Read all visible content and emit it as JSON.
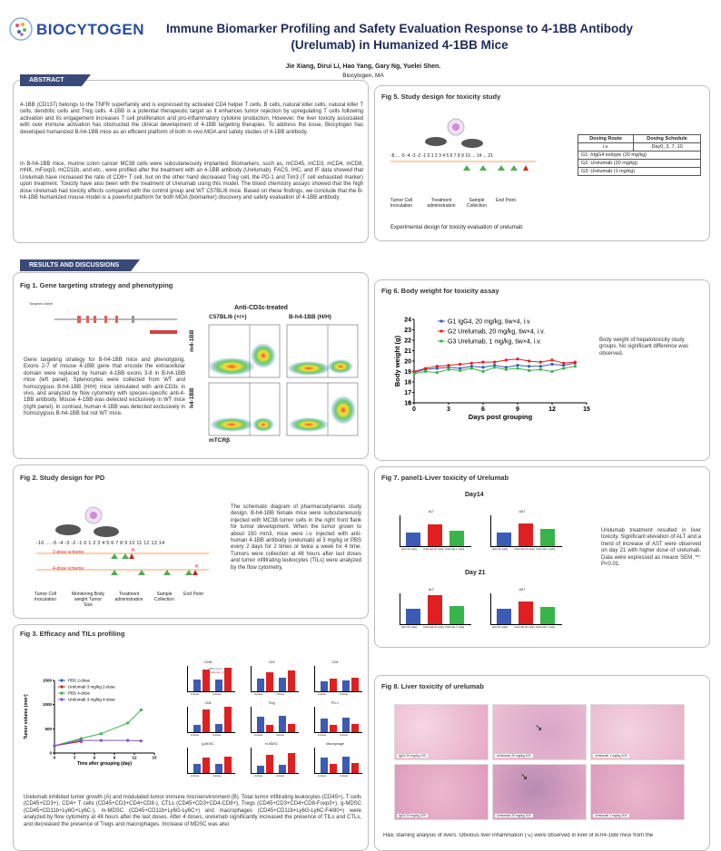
{
  "header": {
    "logo_text": "BIOCYTOGEN",
    "title_line1": "Immune Biomarker Profiling and Safety Evaluation Response to 4-1BB Antibody",
    "title_line2": "(Urelumab) in Humanized 4-1BB Mice",
    "authors": "Jie Xiang, Dirui Li, Hao Yang, Gary Ng, Yuelei Shen.",
    "affiliation": "Biocytogen, MA"
  },
  "abstract": {
    "heading": "ABSTRACT",
    "para1": "4-1BB (CD137) belongs to the TNFR superfamily and is expressed by activated CD4 helper T cells, B cells, natural killer cells, natural killer T cells, dendritic cells and Treg cells. 4-1BB is a potential therapeutic target as it enhances tumor rejection by upregulating T cells following activation and its engagement increases T cell proliferation and pro-inflammatory cytokine production. However, the liver toxicity associated with over immune activation has obstructed the clinical development of 4-1BB targeting therapies. To address the issue, Biocytogen has developed humanized B-h4-1BB mice as an efficient platform of both in vivo MOA and safety studies of 4-1BB antibody.",
    "para2": "In B-h4-1BB mice, murine colon cancer MC38 cells were subcutaneously implanted. Biomarkers, such as, mCD45, mCD3, mCD4, mCD8, mNK, mFoxp3, mCD11b, and etc., were profiled after the treatment with an 4-1BB antibody (Urelumab). FACS, IHC, and IF data showed that Urelumab have increased the ratio of CD8+ T cell, but on the other hand decreased Treg cell, the PD-1 and Tim3 (T cell exhausted marker) upon treatment. Toxicity have also been with the treatment of Urelumab using this model. The blood chemistry assays showed that the high dose Urelumab had toxicity effects compared with the control group and WT C57BL/6 mice. Based on these findings, we conclude that the B-h4-1BB humanized mouse model is a powerful platform for both MOA (biomarker) discovery and safety evaluation of 4-1BB antibody."
  },
  "results_heading": "RESULTS AND DISCUSSIONS",
  "fig1": {
    "title": "Fig 1. Gene targeting strategy and phenotyping",
    "allele_label": "Targeted allele",
    "facs_title": "Anti-CD3ε-treated",
    "col1": "C57BL/6 (+/+)",
    "col2": "B-h4-1BB (H/H)",
    "row1": "m4-1BB",
    "row2": "h4-1BB",
    "xaxis": "mTCRβ",
    "text": "Gene targeting strategy for B-h4-1BB mice and phenotyping. Exons 2-7 of mouse 4-1BB gene that encode the extracellular domain were replaced by human 4-1BB exons 3-8 in B-h4-1BB mice (left panel). Splenocytes were collected from WT and homozygous B-h4-1BB (H/H) mice stimulated with anti-CD3ε in vivo, and analyzed by flow cytometry with species-specific anti-4-1BB antibody. Mouse 4-1BB was detected exclusively in WT mice (right panel). In contrast, human 4-1BB was detected exclusively in homozygous B-h4-1BB but not WT mice."
  },
  "fig2": {
    "title": "Fig 2. Study design for PD",
    "timeline": "-10 ... -5 -4 -3 -2 -1 0 1 2 3 4 5 6 7 8 9 10 11 12 13 14",
    "scheme2": "2-dose scheme",
    "scheme4": "4-dose scheme",
    "legend": [
      "Tumor Cell Inoculation",
      "Monitoring Body weight Tumor Size",
      "Treatment administration",
      "Sample Collection",
      "End Point"
    ],
    "text": "The schematic diagram of pharmacodynamic study design. B-h4-1BB female mice were subcutaneously injected with MC38 tumor cells in the right front flank for tumor development. When the tumor grown to about 150 mm3, mice were i.v. injected with anti-human 4-1BB antibody (urelumab) at 3 mg/kg or PBS every 2 days for 2 times or twice a week for 4 time. Tumors were collection at 48 hours after last doses and tumor infiltrating leukocytes (TILs) were analyzed by the flow cytometry."
  },
  "fig3": {
    "title": "Fig 3. Efficacy and TILs profiling",
    "text": "Urelumab inhibited tumor growth (A) and modulated tumor immune microenvironment (B). Total tumor infiltrating leukocytes (CD45+), T cells (CD45+CD3+), CD4+ T cells (CD45+CD3+CD4+CD8-), CTLs (CD45+CD3+CD4-CD8+), Tregs (CD45+CD3+CD4+CD8-Foxp3+), g-MDSC (CD45+CD11b+Ly6G+Ly6C-), m-MDSC (CD45+CD11b+Ly6G-Ly6C+) and macrophages (CD45+CD11b+Ly6G-Ly6C-F4/80+) were analyzed by flow cytometry at 48 hours after the last doses. After 4 doses, urelumab significantly increased the presence of TILs and CTLs, and decreased the presence of Tregs and macrophages. Increase of MDSC was also",
    "bar_titles": [
      "CD45",
      "CD3",
      "CD4",
      "CD8",
      "Treg",
      "PD-1",
      "g-MDSC",
      "m-MDSC",
      "Macrophage"
    ],
    "bar_legend": [
      "PBS control",
      "Urelumab 3 mg/kg"
    ],
    "bar_xlabels": [
      "2-dose",
      "4-dose"
    ]
  },
  "fig5": {
    "title": "Fig 5. Study design for toxicity study",
    "timeline": "-8 ... -5 -4 -3 -2 -1 0 1 2 3 4 5 6 7 8 9 10 ... 14 ... 21",
    "legend": [
      "Tumor Cell Inoculation",
      "Treatment administration",
      "Sample Collection",
      "End Point"
    ],
    "caption": "Experimental design for toxicity evaluation of urelumab",
    "table": {
      "h1": "Dosing Route",
      "h2": "Dosing Schedule",
      "r1c1": "i.v.",
      "r1c2": "Day0, 3, 7, 10",
      "g1": "G1: hIgG4 isotype (20 mg/kg)",
      "g2": "G2: Urelumab (20 mg/kg)",
      "g3": "G3: Urelumab (1 mg/kg)"
    }
  },
  "fig6": {
    "title": "Fig 6. Body weight for toxicity assay",
    "note": "Body weight of hepatotoxicity study groups. No significant difference was observed."
  },
  "fig7": {
    "title": "Fig 7. panel1-Liver toxicity of Urelumab",
    "day14": "Day14",
    "day21": "Day 21",
    "alt": "ALT",
    "ast": "AST",
    "text": "Urelumab treatment resulted in liver toxicity. Significant elevation of ALT and a trend of increase of AST were observed on day 21 with higher dose of urelumab. Data were expressed as mean± SEM. **: P<0.01.",
    "xlabels": [
      "IgG4 20 mg/kg",
      "Urelumab 20 mg/kg",
      "Urelumab 1 mg/kg"
    ]
  },
  "fig8": {
    "title": "Fig 8. Liver toxicity of urelumab",
    "labels": [
      "IgG4 20 mg/kg 10X",
      "Urelumab 20 mg/kg 10X",
      "Urelumab 1 mg/kg 10X",
      "IgG4 20 mg/kg 20X",
      "Urelumab 20 mg/kg 20X",
      "Urelumab 1 mg/kg 20X"
    ],
    "text": "H&E staining analysis of livers. Obvious liver inflammation (↘) were observed in liver of B-h4-1BB mice from the"
  },
  "chart_tumor": {
    "type": "line",
    "ylabel": "Tumor volume (mm³)",
    "xlabel": "Time after grouping (day)",
    "ylim": [
      0,
      1500
    ],
    "xlim": [
      0,
      15
    ],
    "yticks": [
      0,
      500,
      1000,
      1500
    ],
    "xticks": [
      0,
      3,
      6,
      9,
      12,
      15
    ],
    "series": [
      {
        "name": "PBS 2-dose",
        "color": "#3b5bb5",
        "x": [
          0,
          4
        ],
        "y": [
          150,
          290
        ]
      },
      {
        "name": "Urelumab 3 mg/kg 2-dose",
        "color": "#e02020",
        "x": [
          0,
          4
        ],
        "y": [
          150,
          240
        ]
      },
      {
        "name": "PBS 4-dose",
        "color": "#38b44a",
        "x": [
          0,
          4,
          7,
          11,
          13
        ],
        "y": [
          150,
          300,
          400,
          620,
          890
        ]
      },
      {
        "name": "Urelumab 3 mg/kg 4-dose",
        "color": "#8a4fc0",
        "x": [
          0,
          4,
          7,
          11,
          13
        ],
        "y": [
          150,
          260,
          260,
          260,
          250
        ]
      }
    ]
  },
  "chart_weight": {
    "type": "line",
    "ylabel": "Body weight (g)",
    "xlabel": "Days post grouping",
    "ylim": [
      0,
      24
    ],
    "xlim": [
      0,
      15
    ],
    "yticks": [
      0,
      16,
      17,
      18,
      19,
      20,
      21,
      22,
      23,
      24
    ],
    "xticks": [
      0,
      3,
      6,
      9,
      12,
      15
    ],
    "series": [
      {
        "name": "G1 IgG4, 20 mg/kg, tiw×4, i.v.",
        "color": "#3b5bb5",
        "x": [
          0,
          1,
          2,
          3,
          4,
          5,
          6,
          7,
          8,
          9,
          10,
          11,
          12,
          13,
          14
        ],
        "y": [
          18.9,
          19.2,
          19.3,
          19.4,
          19.3,
          19.5,
          19.4,
          19.6,
          19.4,
          19.6,
          19.5,
          19.5,
          19.7,
          19.6,
          19.8
        ]
      },
      {
        "name": "G2 Urelumab, 20 mg/kg, tiw×4, i.v.",
        "color": "#e02020",
        "x": [
          0,
          1,
          2,
          3,
          4,
          5,
          6,
          7,
          8,
          9,
          10,
          11,
          12,
          13,
          14
        ],
        "y": [
          19.0,
          19.3,
          19.5,
          19.6,
          19.7,
          19.8,
          19.9,
          19.9,
          20.1,
          20.2,
          20.0,
          19.9,
          20.1,
          19.8,
          19.9
        ]
      },
      {
        "name": "G3 Urelumab, 1 mg/kg, tiw×4, i.v.",
        "color": "#38b44a",
        "x": [
          0,
          1,
          2,
          3,
          4,
          5,
          6,
          7,
          8,
          9,
          10,
          11,
          12,
          13,
          14
        ],
        "y": [
          18.8,
          19.0,
          18.9,
          19.2,
          19.1,
          19.3,
          19.0,
          19.4,
          19.2,
          19.3,
          19.1,
          19.2,
          19.0,
          19.3,
          19.5
        ]
      }
    ]
  }
}
